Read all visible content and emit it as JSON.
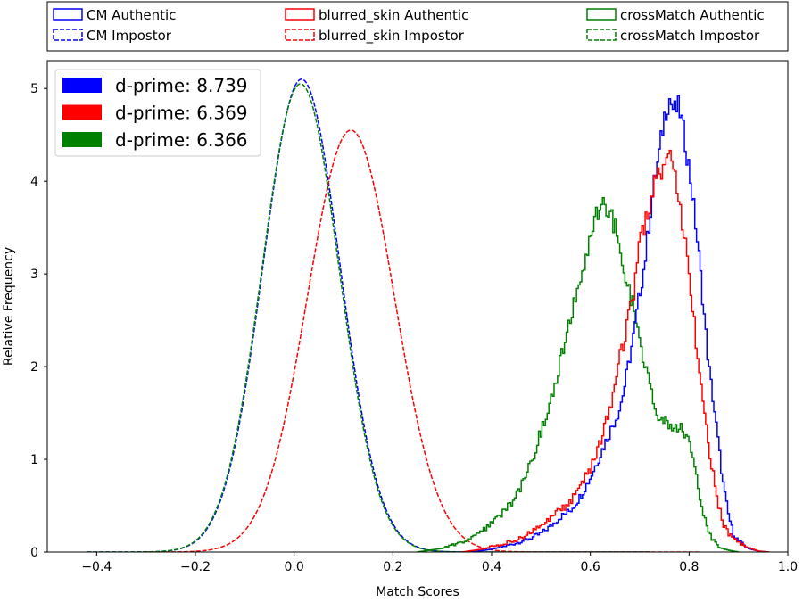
{
  "chart_data": {
    "type": "line",
    "title": "",
    "xlabel": "Match Scores",
    "ylabel": "Relative Frequency",
    "xlim": [
      -0.5,
      1.0
    ],
    "ylim": [
      0,
      5.3
    ],
    "xticks": [
      -0.4,
      -0.2,
      0.0,
      0.2,
      0.4,
      0.6,
      0.8,
      1.0
    ],
    "xtick_labels": [
      "−0.4",
      "−0.2",
      "0.0",
      "0.2",
      "0.4",
      "0.6",
      "0.8",
      "1.0"
    ],
    "yticks": [
      0,
      1,
      2,
      3,
      4,
      5
    ],
    "ytick_labels": [
      "0",
      "1",
      "2",
      "3",
      "4",
      "5"
    ],
    "grid": false,
    "colors": {
      "cm": "#0000ff",
      "blurred": "#ff0000",
      "cross": "#008000"
    },
    "series": [
      {
        "name": "CM Authentic",
        "color": "#0000ff",
        "style": "solid",
        "kind": "authentic",
        "points": [
          [
            0.36,
            0.0
          ],
          [
            0.4,
            0.03
          ],
          [
            0.44,
            0.08
          ],
          [
            0.48,
            0.15
          ],
          [
            0.5,
            0.2
          ],
          [
            0.52,
            0.28
          ],
          [
            0.54,
            0.38
          ],
          [
            0.56,
            0.45
          ],
          [
            0.58,
            0.6
          ],
          [
            0.6,
            0.8
          ],
          [
            0.62,
            1.05
          ],
          [
            0.64,
            1.3
          ],
          [
            0.66,
            1.55
          ],
          [
            0.67,
            1.8
          ],
          [
            0.68,
            2.1
          ],
          [
            0.69,
            2.4
          ],
          [
            0.7,
            2.8
          ],
          [
            0.71,
            3.1
          ],
          [
            0.72,
            3.6
          ],
          [
            0.73,
            4.0
          ],
          [
            0.74,
            4.3
          ],
          [
            0.75,
            4.7
          ],
          [
            0.76,
            4.9
          ],
          [
            0.77,
            4.75
          ],
          [
            0.78,
            4.8
          ],
          [
            0.79,
            4.5
          ],
          [
            0.8,
            4.15
          ],
          [
            0.81,
            3.7
          ],
          [
            0.82,
            3.2
          ],
          [
            0.83,
            2.6
          ],
          [
            0.84,
            2.0
          ],
          [
            0.85,
            1.6
          ],
          [
            0.86,
            1.15
          ],
          [
            0.87,
            0.7
          ],
          [
            0.88,
            0.4
          ],
          [
            0.89,
            0.2
          ],
          [
            0.9,
            0.12
          ],
          [
            0.92,
            0.04
          ],
          [
            0.94,
            0.01
          ],
          [
            0.96,
            0.0
          ]
        ]
      },
      {
        "name": "CM Impostor",
        "color": "#0000ff",
        "style": "dashed",
        "kind": "impostor",
        "mu": 0.015,
        "sigma": 0.078,
        "peak": 5.1,
        "range": [
          -0.42,
          0.72
        ]
      },
      {
        "name": "blurred_skin Authentic",
        "color": "#ff0000",
        "style": "solid",
        "kind": "authentic",
        "points": [
          [
            0.34,
            0.0
          ],
          [
            0.38,
            0.03
          ],
          [
            0.42,
            0.08
          ],
          [
            0.46,
            0.15
          ],
          [
            0.5,
            0.3
          ],
          [
            0.54,
            0.45
          ],
          [
            0.56,
            0.55
          ],
          [
            0.58,
            0.72
          ],
          [
            0.6,
            0.9
          ],
          [
            0.62,
            1.2
          ],
          [
            0.64,
            1.55
          ],
          [
            0.65,
            1.85
          ],
          [
            0.66,
            2.1
          ],
          [
            0.67,
            2.3
          ],
          [
            0.68,
            2.6
          ],
          [
            0.69,
            2.85
          ],
          [
            0.7,
            3.3
          ],
          [
            0.71,
            3.55
          ],
          [
            0.72,
            3.75
          ],
          [
            0.73,
            3.95
          ],
          [
            0.74,
            4.05
          ],
          [
            0.75,
            4.1
          ],
          [
            0.76,
            4.25
          ],
          [
            0.77,
            4.05
          ],
          [
            0.78,
            3.8
          ],
          [
            0.79,
            3.4
          ],
          [
            0.8,
            3.05
          ],
          [
            0.81,
            2.5
          ],
          [
            0.82,
            2.0
          ],
          [
            0.83,
            1.6
          ],
          [
            0.84,
            1.1
          ],
          [
            0.85,
            0.8
          ],
          [
            0.86,
            0.5
          ],
          [
            0.87,
            0.3
          ],
          [
            0.88,
            0.2
          ],
          [
            0.9,
            0.1
          ],
          [
            0.92,
            0.05
          ],
          [
            0.94,
            0.01
          ],
          [
            0.96,
            0.0
          ]
        ]
      },
      {
        "name": "blurred_skin Impostor",
        "color": "#ff0000",
        "style": "dashed",
        "kind": "impostor",
        "mu": 0.115,
        "sigma": 0.088,
        "peak": 4.55,
        "range": [
          -0.3,
          0.82
        ]
      },
      {
        "name": "crossMatch Authentic",
        "color": "#008000",
        "style": "solid",
        "kind": "authentic",
        "points": [
          [
            0.25,
            0.0
          ],
          [
            0.3,
            0.04
          ],
          [
            0.34,
            0.1
          ],
          [
            0.38,
            0.22
          ],
          [
            0.42,
            0.4
          ],
          [
            0.45,
            0.6
          ],
          [
            0.48,
            0.95
          ],
          [
            0.5,
            1.3
          ],
          [
            0.52,
            1.6
          ],
          [
            0.54,
            2.1
          ],
          [
            0.56,
            2.5
          ],
          [
            0.58,
            2.95
          ],
          [
            0.6,
            3.35
          ],
          [
            0.61,
            3.6
          ],
          [
            0.62,
            3.75
          ],
          [
            0.63,
            3.75
          ],
          [
            0.64,
            3.65
          ],
          [
            0.65,
            3.5
          ],
          [
            0.66,
            3.35
          ],
          [
            0.67,
            3.0
          ],
          [
            0.68,
            2.8
          ],
          [
            0.69,
            2.6
          ],
          [
            0.7,
            2.3
          ],
          [
            0.71,
            2.0
          ],
          [
            0.72,
            1.8
          ],
          [
            0.73,
            1.6
          ],
          [
            0.74,
            1.45
          ],
          [
            0.75,
            1.4
          ],
          [
            0.76,
            1.35
          ],
          [
            0.77,
            1.37
          ],
          [
            0.78,
            1.36
          ],
          [
            0.79,
            1.3
          ],
          [
            0.8,
            1.15
          ],
          [
            0.81,
            0.95
          ],
          [
            0.82,
            0.65
          ],
          [
            0.83,
            0.4
          ],
          [
            0.84,
            0.2
          ],
          [
            0.85,
            0.12
          ],
          [
            0.86,
            0.05
          ],
          [
            0.88,
            0.02
          ],
          [
            0.9,
            0.0
          ]
        ]
      },
      {
        "name": "crossMatch Impostor",
        "color": "#008000",
        "style": "dashed",
        "kind": "impostor",
        "mu": 0.013,
        "sigma": 0.078,
        "peak": 5.05,
        "range": [
          -0.42,
          0.72
        ]
      }
    ],
    "legend_top": {
      "placement": "top",
      "entries": [
        {
          "label": "CM Authentic",
          "color": "#0000ff",
          "style": "solid"
        },
        {
          "label": "blurred_skin Authentic",
          "color": "#ff0000",
          "style": "solid"
        },
        {
          "label": "crossMatch Authentic",
          "color": "#008000",
          "style": "solid"
        },
        {
          "label": "CM Impostor",
          "color": "#0000ff",
          "style": "dashed"
        },
        {
          "label": "blurred_skin Impostor",
          "color": "#ff0000",
          "style": "dashed"
        },
        {
          "label": "crossMatch Impostor",
          "color": "#008000",
          "style": "dashed"
        }
      ]
    },
    "legend_dprime": {
      "placement": "upper-left",
      "entries": [
        {
          "label": "d-prime: 8.739",
          "value": 8.739,
          "color": "#0000ff"
        },
        {
          "label": "d-prime: 6.369",
          "value": 6.369,
          "color": "#ff0000"
        },
        {
          "label": "d-prime: 6.366",
          "value": 6.366,
          "color": "#008000"
        }
      ]
    }
  }
}
